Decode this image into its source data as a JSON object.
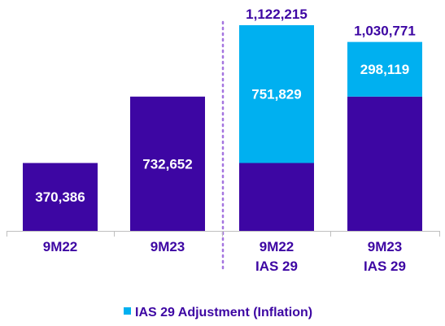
{
  "chart_data": {
    "type": "bar",
    "stacked": true,
    "categories": [
      [
        "9M22"
      ],
      [
        "9M23"
      ],
      [
        "9M22",
        "IAS 29"
      ],
      [
        "9M23",
        "IAS 29"
      ]
    ],
    "series": [
      {
        "values": [
          370386,
          732652,
          370386,
          732652
        ],
        "color": "#3d06a3",
        "labels": [
          "370,386",
          "732,652",
          "",
          ""
        ]
      },
      {
        "name": "IAS 29 Adjustment (Inflation)",
        "values": [
          0,
          0,
          751829,
          298119
        ],
        "color": "#00b0f0",
        "labels": [
          "",
          "",
          "751,829",
          "298,119"
        ]
      }
    ],
    "totals": [
      "",
      "",
      "1,122,215",
      "1,030,771"
    ],
    "ylim": [
      0,
      1122215
    ],
    "divider": "dotted vertical line between 9M23 and 9M22 IAS 29",
    "divider_color": "#a575e0",
    "legend_position": "bottom-center",
    "grid": false
  }
}
